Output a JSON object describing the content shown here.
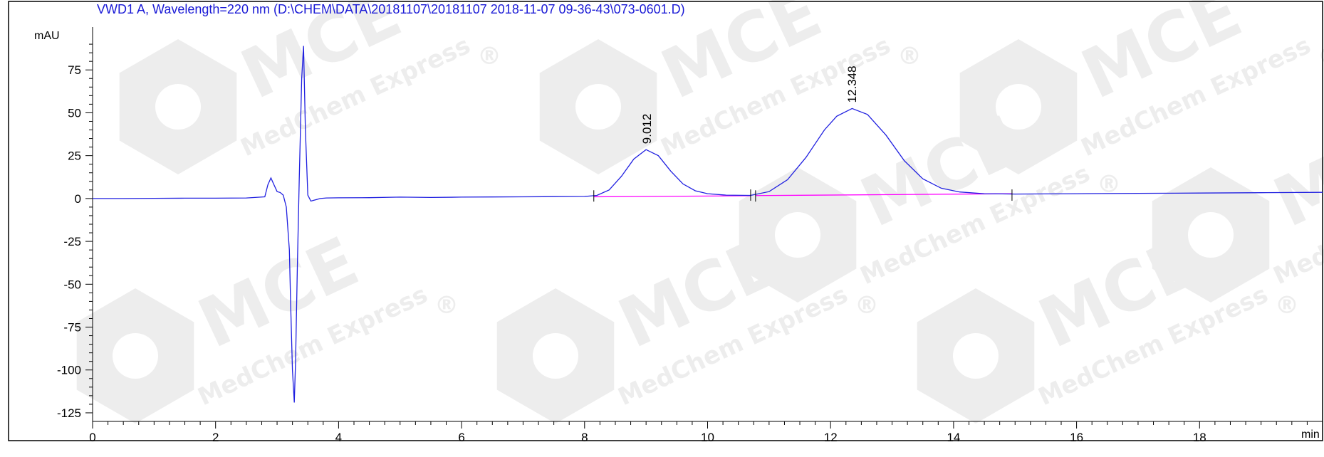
{
  "chart_data": {
    "type": "line",
    "title": "VWD1 A, Wavelength=220 nm (D:\\CHEM\\DATA\\20181107\\20181107 2018-11-07 09-36-43\\073-0601.D)",
    "ylabel": "mAU",
    "xlabel": "min",
    "xlim": [
      0,
      20
    ],
    "ylim": [
      -130,
      100
    ],
    "x_ticks": [
      0,
      2,
      4,
      6,
      8,
      10,
      12,
      14,
      16,
      18
    ],
    "y_ticks": [
      75,
      50,
      25,
      0,
      -25,
      -50,
      -75,
      -100,
      -125
    ],
    "grid": false,
    "colors": {
      "trace": "#2020e0",
      "baseline": "#ff00ff",
      "title": "#1a1ad6",
      "axis": "#000000",
      "watermark": "#ededed"
    },
    "peak_labels": [
      {
        "text": "9.012",
        "x": 9.012,
        "y": 28.5
      },
      {
        "text": "12.348",
        "x": 12.348,
        "y": 52.5
      }
    ],
    "integration_markers": [
      8.15,
      10.7,
      10.78,
      14.95
    ],
    "baselines": [
      {
        "x": [
          8.15,
          10.7
        ],
        "y": [
          1.0,
          1.6
        ]
      },
      {
        "x": [
          10.78,
          14.95
        ],
        "y": [
          1.7,
          2.8
        ]
      }
    ],
    "series": [
      {
        "x": [
          0,
          0.5,
          1.0,
          1.5,
          2.0,
          2.5,
          2.8,
          2.85,
          2.9,
          2.95,
          3.0,
          3.05,
          3.1,
          3.15,
          3.2,
          3.22,
          3.25,
          3.28,
          3.3,
          3.33,
          3.36,
          3.4,
          3.43,
          3.46,
          3.5,
          3.55,
          3.6,
          3.65,
          3.7,
          3.8,
          4.0,
          4.5,
          5.0,
          5.5,
          6.0,
          6.5,
          7.0,
          7.5,
          8.0,
          8.2,
          8.4,
          8.6,
          8.8,
          9.0,
          9.2,
          9.4,
          9.6,
          9.8,
          10.0,
          10.3,
          10.7,
          11.0,
          11.3,
          11.6,
          11.9,
          12.1,
          12.35,
          12.6,
          12.9,
          13.2,
          13.5,
          13.8,
          14.1,
          14.5,
          15.0,
          16.0,
          17.0,
          18.0,
          19.0,
          20.0
        ],
        "values": [
          0.0,
          0.0,
          0.1,
          0.2,
          0.2,
          0.3,
          1.0,
          8.0,
          12.0,
          8.0,
          4.0,
          3.5,
          2.0,
          -5.0,
          -30.0,
          -60.0,
          -100.0,
          -119.0,
          -95.0,
          -40.0,
          10.0,
          70.0,
          89.0,
          40.0,
          2.0,
          -1.5,
          -1.0,
          -0.5,
          0.0,
          0.3,
          0.4,
          0.5,
          0.8,
          0.6,
          0.8,
          0.9,
          1.0,
          1.1,
          1.2,
          1.8,
          5.0,
          13.0,
          23.0,
          28.5,
          25.0,
          16.0,
          8.5,
          4.5,
          2.8,
          2.0,
          1.8,
          4.0,
          11.0,
          24.0,
          40.0,
          48.0,
          52.5,
          49.0,
          37.0,
          22.0,
          11.5,
          6.0,
          3.8,
          2.8,
          2.6,
          2.8,
          3.0,
          3.2,
          3.4,
          3.6
        ]
      }
    ]
  },
  "watermark": {
    "brand": "MCE",
    "sub": "MedChem Express",
    "reg": "®"
  }
}
